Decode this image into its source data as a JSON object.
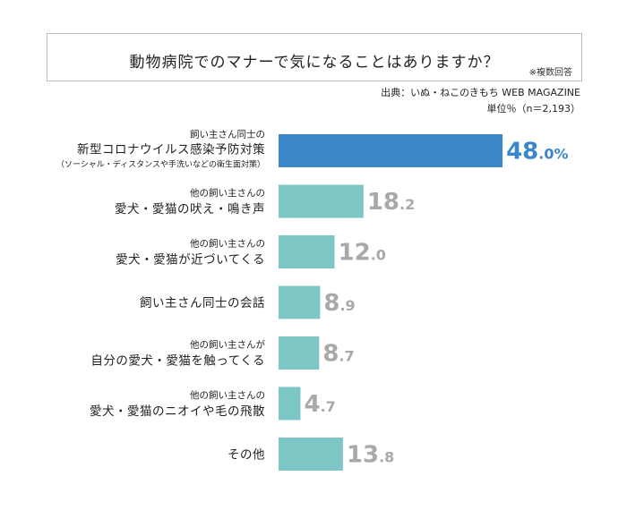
{
  "header": {
    "title": "動物病院でのマナーで気になることはありますか？",
    "note": "※複数回答",
    "source": "出典：いぬ・ねこのきもち WEB MAGAZINE",
    "unit": "単位％（n＝2,193）"
  },
  "colors": {
    "highlight": "#3a86c8",
    "bar": "#7dc6c6",
    "value": "#a9a9a9"
  },
  "chart_data": {
    "type": "bar",
    "orientation": "horizontal",
    "categories": [
      {
        "lines": [
          "飼い主さん同士の",
          "新型コロナウイルス感染予防対策",
          "（ソーシャル・ディスタンスや手洗いなどの衛生面対策）"
        ]
      },
      {
        "lines": [
          "他の飼い主さんの",
          "愛犬・愛猫の吠え・鳴き声"
        ]
      },
      {
        "lines": [
          "他の飼い主さんの",
          "愛犬・愛猫が近づいてくる"
        ]
      },
      {
        "lines": [
          "飼い主さん同士の会話"
        ]
      },
      {
        "lines": [
          "他の飼い主さんが",
          "自分の愛犬・愛猫を触ってくる"
        ]
      },
      {
        "lines": [
          "他の飼い主さんの",
          "愛犬・愛猫のニオイや毛の飛散"
        ]
      },
      {
        "lines": [
          "その他"
        ]
      }
    ],
    "values": [
      48.0,
      18.2,
      12.0,
      8.9,
      8.7,
      4.7,
      13.8
    ],
    "labels": [
      {
        "int": "48",
        "dec": ".0",
        "pct": "%"
      },
      {
        "int": "18",
        "dec": ".2",
        "pct": ""
      },
      {
        "int": "12",
        "dec": ".0",
        "pct": ""
      },
      {
        "int": "8",
        "dec": ".9",
        "pct": ""
      },
      {
        "int": "8",
        "dec": ".7",
        "pct": ""
      },
      {
        "int": "4",
        "dec": ".7",
        "pct": ""
      },
      {
        "int": "13",
        "dec": ".8",
        "pct": ""
      }
    ],
    "highlight_index": 0
  }
}
